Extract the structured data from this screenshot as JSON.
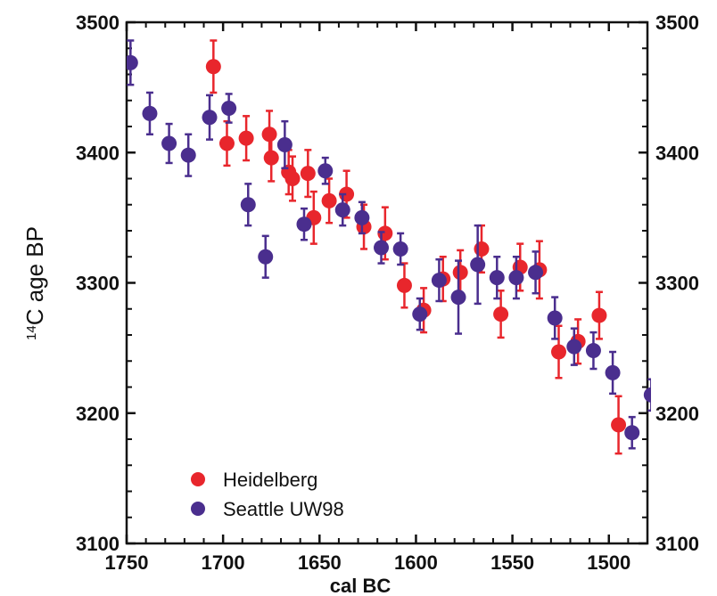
{
  "chart_data": {
    "type": "scatter",
    "title": "",
    "xlabel": "cal BC",
    "ylabel_sup": "14",
    "ylabel_main": "C age BP",
    "xlim": [
      1750,
      1480
    ],
    "ylim": [
      3100,
      3500
    ],
    "x_ticks": [
      1750,
      1700,
      1650,
      1600,
      1550,
      1500
    ],
    "y_ticks": [
      3100,
      3200,
      3300,
      3400,
      3500
    ],
    "x_tick_labels": [
      "1750",
      "1700",
      "1650",
      "1600",
      "1550",
      "1500"
    ],
    "y_tick_labels": [
      "3100",
      "3200",
      "3300",
      "3400",
      "3500"
    ],
    "right_y_tick_labels": [
      "3100",
      "3200",
      "3300",
      "3400",
      "3500"
    ],
    "grid": false,
    "legend_position": "bottom-left",
    "series": [
      {
        "name": "Heidelberg",
        "color": "#e8262c",
        "points": [
          {
            "x": 1705,
            "y": 3466,
            "err": 20
          },
          {
            "x": 1698,
            "y": 3407,
            "err": 17
          },
          {
            "x": 1688,
            "y": 3411,
            "err": 17
          },
          {
            "x": 1676,
            "y": 3414,
            "err": 18
          },
          {
            "x": 1675,
            "y": 3396,
            "err": 18
          },
          {
            "x": 1666,
            "y": 3385,
            "err": 17
          },
          {
            "x": 1664,
            "y": 3380,
            "err": 17
          },
          {
            "x": 1656,
            "y": 3384,
            "err": 18
          },
          {
            "x": 1653,
            "y": 3350,
            "err": 20
          },
          {
            "x": 1645,
            "y": 3363,
            "err": 17
          },
          {
            "x": 1636,
            "y": 3368,
            "err": 18
          },
          {
            "x": 1627,
            "y": 3343,
            "err": 17
          },
          {
            "x": 1616,
            "y": 3338,
            "err": 20
          },
          {
            "x": 1606,
            "y": 3298,
            "err": 17
          },
          {
            "x": 1596,
            "y": 3279,
            "err": 17
          },
          {
            "x": 1586,
            "y": 3303,
            "err": 17
          },
          {
            "x": 1577,
            "y": 3308,
            "err": 17
          },
          {
            "x": 1566,
            "y": 3326,
            "err": 18
          },
          {
            "x": 1556,
            "y": 3276,
            "err": 18
          },
          {
            "x": 1546,
            "y": 3312,
            "err": 18
          },
          {
            "x": 1536,
            "y": 3310,
            "err": 22
          },
          {
            "x": 1526,
            "y": 3247,
            "err": 20
          },
          {
            "x": 1516,
            "y": 3255,
            "err": 17
          },
          {
            "x": 1505,
            "y": 3275,
            "err": 18
          },
          {
            "x": 1495,
            "y": 3191,
            "err": 22
          }
        ]
      },
      {
        "name": "Seattle UW98",
        "color": "#4a2e8e",
        "points": [
          {
            "x": 1748,
            "y": 3469,
            "err": 17
          },
          {
            "x": 1738,
            "y": 3430,
            "err": 16
          },
          {
            "x": 1728,
            "y": 3407,
            "err": 15
          },
          {
            "x": 1718,
            "y": 3398,
            "err": 16
          },
          {
            "x": 1707,
            "y": 3427,
            "err": 17
          },
          {
            "x": 1697,
            "y": 3434,
            "err": 11
          },
          {
            "x": 1687,
            "y": 3360,
            "err": 16
          },
          {
            "x": 1678,
            "y": 3320,
            "err": 16
          },
          {
            "x": 1668,
            "y": 3406,
            "err": 18
          },
          {
            "x": 1658,
            "y": 3345,
            "err": 12
          },
          {
            "x": 1647,
            "y": 3386,
            "err": 10
          },
          {
            "x": 1638,
            "y": 3356,
            "err": 12
          },
          {
            "x": 1628,
            "y": 3350,
            "err": 12
          },
          {
            "x": 1618,
            "y": 3327,
            "err": 12
          },
          {
            "x": 1608,
            "y": 3326,
            "err": 12
          },
          {
            "x": 1598,
            "y": 3276,
            "err": 12
          },
          {
            "x": 1588,
            "y": 3302,
            "err": 16
          },
          {
            "x": 1578,
            "y": 3289,
            "err": 28
          },
          {
            "x": 1568,
            "y": 3314,
            "err": 30
          },
          {
            "x": 1558,
            "y": 3304,
            "err": 16
          },
          {
            "x": 1548,
            "y": 3304,
            "err": 16
          },
          {
            "x": 1538,
            "y": 3308,
            "err": 16
          },
          {
            "x": 1528,
            "y": 3273,
            "err": 16
          },
          {
            "x": 1518,
            "y": 3251,
            "err": 14
          },
          {
            "x": 1508,
            "y": 3248,
            "err": 14
          },
          {
            "x": 1498,
            "y": 3231,
            "err": 16
          },
          {
            "x": 1488,
            "y": 3185,
            "err": 12
          },
          {
            "x": 1478,
            "y": 3214,
            "err": 12
          }
        ]
      }
    ]
  }
}
